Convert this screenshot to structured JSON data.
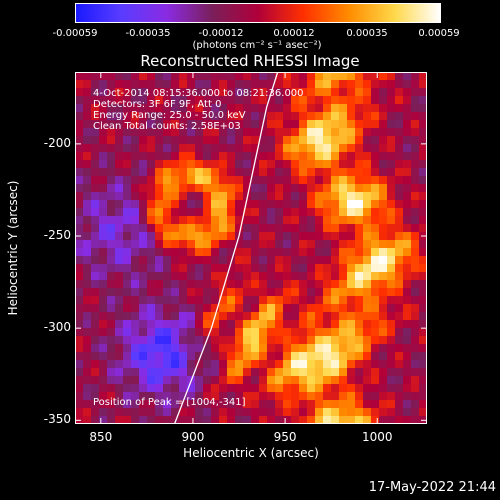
{
  "colorbar": {
    "ticks": [
      "-0.00059",
      "-0.00035",
      "-0.00012",
      "0.00012",
      "0.00035",
      "0.00059"
    ],
    "units": "(photons cm⁻² s⁻¹ asec⁻²)",
    "colors": [
      "#1a1aff",
      "#5a3cff",
      "#8a2be2",
      "#7a1f5a",
      "#b0003a",
      "#ff3000",
      "#ff8c00",
      "#ffd84a",
      "#ffffff"
    ]
  },
  "title": "Reconstructed RHESSI Image",
  "annotations": {
    "line1": "4-Oct-2014 08:15:36.000 to 08:21:36.000",
    "line2": "Detectors: 3F 6F 9F, Att 0",
    "line3": "Energy Range: 25.0 - 50.0 keV",
    "line4": "Clean     Total counts: 2.58E+03",
    "peak": "Position of Peak = [1004,-341]"
  },
  "footer": "17-May-2022 21:44",
  "chart_data": {
    "type": "heatmap",
    "title": "Reconstructed RHESSI Image",
    "xlabel": "Heliocentric X (arcsec)",
    "ylabel": "Heliocentric Y (arcsec)",
    "xlim": [
      836,
      1027
    ],
    "ylim": [
      -352,
      -161
    ],
    "x_ticks": [
      850,
      900,
      950,
      1000
    ],
    "y_ticks": [
      -350,
      -300,
      -250,
      -200
    ],
    "colorbar_range": [
      -0.00059,
      0.00059
    ],
    "peak_position": [
      1004,
      -341
    ],
    "limb_curve": {
      "x": [
        890,
        910,
        925,
        940,
        946
      ],
      "y": [
        -352,
        -300,
        -250,
        -180,
        -161
      ]
    }
  }
}
